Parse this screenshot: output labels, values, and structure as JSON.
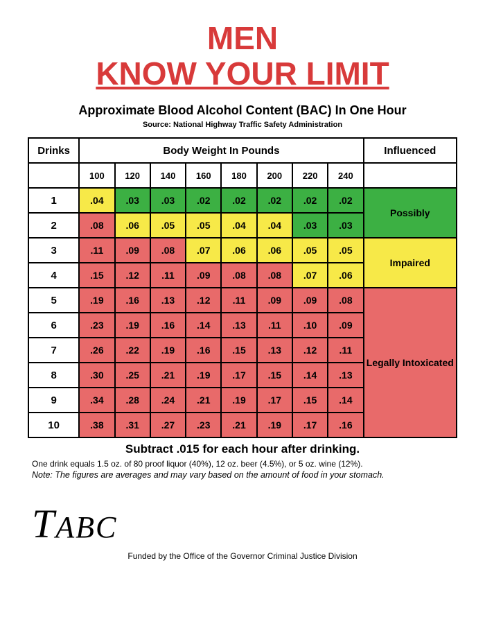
{
  "title_line1": "MEN",
  "title_line2": "KNOW YOUR LIMIT",
  "title_color": "#d83a3a",
  "subtitle": "Approximate Blood Alcohol Content (BAC) In One Hour",
  "source": "Source: National Highway Traffic Safety Administration",
  "table": {
    "header_drinks": "Drinks",
    "header_body_weight": "Body Weight In Pounds",
    "header_influenced": "Influenced",
    "weights": [
      "100",
      "120",
      "140",
      "160",
      "180",
      "200",
      "220",
      "240"
    ],
    "drinks_labels": [
      "1",
      "2",
      "3",
      "4",
      "5",
      "6",
      "7",
      "8",
      "9",
      "10"
    ],
    "values": [
      [
        ".04",
        ".03",
        ".03",
        ".02",
        ".02",
        ".02",
        ".02",
        ".02"
      ],
      [
        ".08",
        ".06",
        ".05",
        ".05",
        ".04",
        ".04",
        ".03",
        ".03"
      ],
      [
        ".11",
        ".09",
        ".08",
        ".07",
        ".06",
        ".06",
        ".05",
        ".05"
      ],
      [
        ".15",
        ".12",
        ".11",
        ".09",
        ".08",
        ".08",
        ".07",
        ".06"
      ],
      [
        ".19",
        ".16",
        ".13",
        ".12",
        ".11",
        ".09",
        ".09",
        ".08"
      ],
      [
        ".23",
        ".19",
        ".16",
        ".14",
        ".13",
        ".11",
        ".10",
        ".09"
      ],
      [
        ".26",
        ".22",
        ".19",
        ".16",
        ".15",
        ".13",
        ".12",
        ".11"
      ],
      [
        ".30",
        ".25",
        ".21",
        ".19",
        ".17",
        ".15",
        ".14",
        ".13"
      ],
      [
        ".34",
        ".28",
        ".24",
        ".21",
        ".19",
        ".17",
        ".15",
        ".14"
      ],
      [
        ".38",
        ".31",
        ".27",
        ".23",
        ".21",
        ".19",
        ".17",
        ".16"
      ]
    ],
    "cell_colors": [
      [
        "y",
        "g",
        "g",
        "g",
        "g",
        "g",
        "g",
        "g"
      ],
      [
        "r",
        "y",
        "y",
        "y",
        "y",
        "y",
        "g",
        "g"
      ],
      [
        "r",
        "r",
        "r",
        "y",
        "y",
        "y",
        "y",
        "y"
      ],
      [
        "r",
        "r",
        "r",
        "r",
        "r",
        "r",
        "y",
        "y"
      ],
      [
        "r",
        "r",
        "r",
        "r",
        "r",
        "r",
        "r",
        "r"
      ],
      [
        "r",
        "r",
        "r",
        "r",
        "r",
        "r",
        "r",
        "r"
      ],
      [
        "r",
        "r",
        "r",
        "r",
        "r",
        "r",
        "r",
        "r"
      ],
      [
        "r",
        "r",
        "r",
        "r",
        "r",
        "r",
        "r",
        "r"
      ],
      [
        "r",
        "r",
        "r",
        "r",
        "r",
        "r",
        "r",
        "r"
      ],
      [
        "r",
        "r",
        "r",
        "r",
        "r",
        "r",
        "r",
        "r"
      ]
    ],
    "color_map": {
      "g": "#3cb043",
      "y": "#f7e948",
      "r": "#e86a6a",
      "w": "#ffffff"
    },
    "categories": [
      {
        "label": "Possibly",
        "rowspan": 2,
        "color_key": "g"
      },
      {
        "label": "Impaired",
        "rowspan": 2,
        "color_key": "y"
      },
      {
        "label": "Legally Intoxicated",
        "rowspan": 6,
        "color_key": "r"
      }
    ]
  },
  "subtract_text": "Subtract .015 for each hour after drinking.",
  "drink_definition": "One drink equals 1.5 oz. of 80 proof liquor (40%), 12 oz. beer (4.5%), or 5 oz. wine (12%).",
  "note": "Note: The figures are averages and may vary based on the amount of food in your stomach.",
  "logo_text": "TABC",
  "funded_by": "Funded by the Office of the Governor Criminal Justice Division"
}
